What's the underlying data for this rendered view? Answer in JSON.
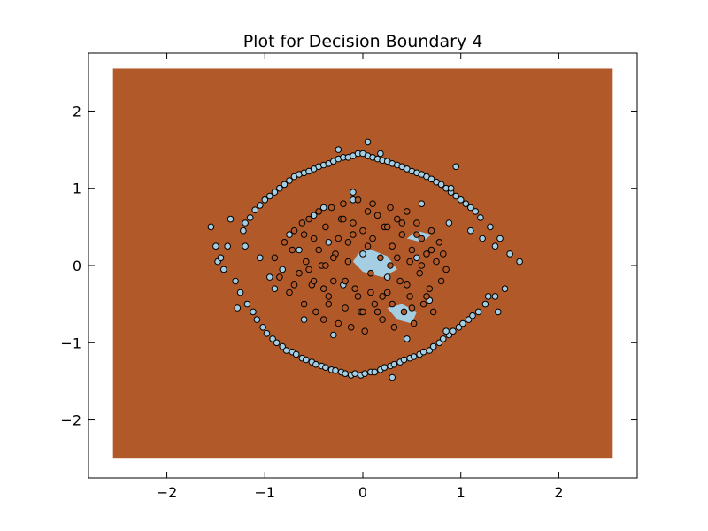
{
  "chart_data": {
    "type": "scatter",
    "title": "Plot for Decision Boundary 4",
    "xlabel": "",
    "ylabel": "",
    "xlim": [
      -2.8,
      2.8
    ],
    "ylim": [
      -2.75,
      2.75
    ],
    "x_ticks": [
      -2,
      -1,
      0,
      1,
      2
    ],
    "y_ticks": [
      -2,
      -1,
      0,
      1,
      2
    ],
    "x_tick_labels": [
      "−2",
      "−1",
      "0",
      "1",
      "2"
    ],
    "y_tick_labels": [
      "−2",
      "−1",
      "0",
      "1",
      "2"
    ],
    "grid": false,
    "legend": "none",
    "decision_region": {
      "x_range": [
        -2.55,
        2.55
      ],
      "y_range": [
        -2.5,
        2.55
      ],
      "class_color": "#b15928"
    },
    "inner_regions": [
      {
        "x": [
          -0.05,
          0.05,
          0.25,
          0.35,
          0.2,
          0.0,
          -0.1
        ],
        "y": [
          0.15,
          0.22,
          0.12,
          -0.05,
          -0.15,
          -0.08,
          0.05
        ],
        "color": "#a6cee3"
      },
      {
        "x": [
          0.25,
          0.4,
          0.55,
          0.5,
          0.35
        ],
        "y": [
          -0.55,
          -0.5,
          -0.6,
          -0.75,
          -0.7
        ],
        "color": "#a6cee3"
      },
      {
        "x": [
          0.45,
          0.55,
          0.7,
          0.6
        ],
        "y": [
          0.35,
          0.45,
          0.4,
          0.3
        ],
        "color": "#a6cee3"
      }
    ],
    "series": [
      {
        "class": 0,
        "color": "#a6cee3",
        "edge_color": "#000000",
        "x": [
          -1.48,
          -1.45,
          -1.42,
          -1.38,
          -1.3,
          -1.22,
          -1.25,
          -1.2,
          -1.18,
          -1.15,
          -1.12,
          -1.1,
          -1.08,
          -1.05,
          -1.02,
          -1.0,
          -0.98,
          -0.95,
          -0.92,
          -0.9,
          -0.88,
          -0.85,
          -0.82,
          -0.8,
          -0.78,
          -0.75,
          -0.72,
          -0.7,
          -0.68,
          -0.65,
          -0.62,
          -0.6,
          -0.58,
          -0.55,
          -0.52,
          -0.5,
          -0.48,
          -0.45,
          -0.42,
          -0.4,
          -0.38,
          -0.35,
          -0.32,
          -0.3,
          -0.28,
          -0.25,
          -0.22,
          -0.2,
          -0.18,
          -0.15,
          -0.12,
          -0.1,
          -0.08,
          -0.05,
          -0.02,
          0.0,
          0.02,
          0.05,
          0.08,
          0.1,
          0.12,
          0.15,
          0.18,
          0.2,
          0.22,
          0.25,
          0.28,
          0.3,
          0.32,
          0.35,
          0.38,
          0.4,
          0.42,
          0.45,
          0.48,
          0.5,
          0.52,
          0.55,
          0.58,
          0.6,
          0.62,
          0.65,
          0.68,
          0.7,
          0.72,
          0.75,
          0.78,
          0.8,
          0.82,
          0.85,
          0.88,
          0.9,
          0.92,
          0.95,
          0.98,
          1.0,
          1.02,
          1.05,
          1.08,
          1.1,
          1.12,
          1.15,
          1.18,
          1.2,
          1.25,
          1.3,
          1.35,
          1.4,
          1.45,
          1.5,
          1.6,
          -1.55,
          -1.5,
          -1.35,
          -1.28,
          -1.2,
          -1.05,
          -0.9,
          -0.75,
          -0.6,
          -0.4,
          -0.3,
          -0.25,
          -0.1,
          0.05,
          0.18,
          0.3,
          0.45,
          0.6,
          0.72,
          0.85,
          0.95,
          1.1,
          1.28,
          1.35,
          -0.35,
          -0.2,
          0.0,
          0.25,
          0.55,
          0.68,
          0.88,
          -0.82,
          -0.65,
          -0.95,
          1.22,
          1.38,
          0.9,
          -0.5,
          -0.1
        ],
        "y": [
          0.05,
          0.1,
          -0.05,
          0.25,
          -0.2,
          0.45,
          -0.35,
          0.55,
          -0.5,
          0.62,
          -0.6,
          0.72,
          -0.7,
          0.78,
          -0.8,
          0.85,
          -0.88,
          0.9,
          -0.95,
          0.95,
          -1.0,
          1.0,
          -1.05,
          1.05,
          -1.1,
          1.1,
          -1.12,
          1.15,
          -1.15,
          1.18,
          -1.2,
          1.2,
          -1.22,
          1.22,
          -1.25,
          1.25,
          -1.28,
          1.28,
          -1.3,
          1.3,
          -1.32,
          1.32,
          -1.35,
          1.35,
          -1.36,
          1.38,
          -1.38,
          1.4,
          -1.4,
          1.4,
          -1.42,
          1.42,
          -1.4,
          1.45,
          -1.42,
          1.45,
          -1.4,
          1.42,
          -1.38,
          1.4,
          -1.38,
          1.38,
          -1.35,
          1.36,
          -1.32,
          1.35,
          -1.3,
          1.32,
          -1.28,
          1.3,
          -1.25,
          1.28,
          -1.22,
          1.25,
          -1.2,
          1.22,
          -1.18,
          1.2,
          -1.15,
          1.18,
          -1.12,
          1.15,
          -1.1,
          1.12,
          -1.05,
          1.08,
          -1.0,
          1.05,
          -0.95,
          1.0,
          -0.9,
          0.95,
          -0.85,
          0.9,
          -0.8,
          0.85,
          -0.75,
          0.8,
          -0.7,
          0.75,
          -0.65,
          0.7,
          -0.6,
          0.62,
          -0.5,
          0.5,
          -0.4,
          0.35,
          -0.3,
          0.15,
          0.05,
          0.5,
          0.25,
          0.6,
          -0.55,
          0.25,
          0.1,
          -0.3,
          0.4,
          -0.7,
          0.75,
          -0.9,
          1.5,
          0.95,
          1.6,
          1.45,
          -1.45,
          -0.95,
          0.8,
          -1.05,
          -0.85,
          1.28,
          0.45,
          -0.4,
          0.25,
          0.3,
          -0.25,
          0.15,
          -0.15,
          0.1,
          -0.45,
          0.55,
          -0.05,
          0.2,
          -0.15,
          0.35,
          -0.6,
          1.0,
          0.65,
          0.85
        ]
      },
      {
        "class": 1,
        "color": "#b15928",
        "edge_color": "#000000",
        "x": [
          -0.9,
          -0.85,
          -0.8,
          -0.75,
          -0.72,
          -0.7,
          -0.65,
          -0.62,
          -0.6,
          -0.58,
          -0.55,
          -0.52,
          -0.5,
          -0.48,
          -0.45,
          -0.42,
          -0.4,
          -0.38,
          -0.35,
          -0.32,
          -0.3,
          -0.28,
          -0.25,
          -0.22,
          -0.2,
          -0.18,
          -0.15,
          -0.12,
          -0.1,
          -0.08,
          -0.05,
          -0.02,
          0.0,
          0.02,
          0.05,
          0.08,
          0.1,
          0.12,
          0.15,
          0.18,
          0.2,
          0.22,
          0.25,
          0.28,
          0.3,
          0.32,
          0.35,
          0.38,
          0.4,
          0.42,
          0.45,
          0.48,
          0.5,
          0.52,
          0.55,
          0.58,
          0.6,
          0.62,
          0.65,
          0.68,
          0.7,
          0.72,
          0.75,
          0.78,
          0.8,
          0.82,
          0.85,
          -0.55,
          -0.45,
          -0.35,
          -0.25,
          -0.15,
          -0.05,
          0.05,
          0.15,
          0.25,
          0.35,
          0.45,
          0.55,
          0.65,
          -0.6,
          -0.4,
          -0.2,
          0.0,
          0.2,
          0.4,
          0.6,
          -0.5,
          -0.3,
          -0.1,
          0.1,
          0.3,
          0.5,
          0.7,
          -0.7,
          -0.38,
          -0.18,
          0.08,
          0.28,
          0.48
        ],
        "y": [
          0.1,
          -0.15,
          0.3,
          -0.35,
          0.2,
          0.45,
          -0.1,
          0.55,
          -0.5,
          0.05,
          0.6,
          -0.25,
          0.35,
          -0.6,
          0.7,
          0.0,
          -0.7,
          0.5,
          -0.4,
          0.75,
          -0.2,
          0.15,
          -0.75,
          0.6,
          0.8,
          -0.55,
          0.3,
          -0.8,
          0.55,
          -0.3,
          0.85,
          -0.6,
          0.45,
          -0.85,
          0.7,
          -0.1,
          0.8,
          -0.5,
          0.65,
          0.1,
          -0.7,
          0.5,
          -0.35,
          0.75,
          0.25,
          -0.8,
          0.6,
          -0.2,
          0.4,
          -0.6,
          0.7,
          -0.4,
          0.2,
          -0.75,
          0.55,
          -0.1,
          0.35,
          -0.5,
          0.15,
          -0.3,
          0.45,
          -0.6,
          0.05,
          0.3,
          -0.2,
          0.15,
          -0.05,
          -0.05,
          0.2,
          -0.5,
          0.35,
          0.05,
          -0.4,
          0.25,
          -0.6,
          0.5,
          0.1,
          -0.25,
          0.4,
          -0.4,
          0.4,
          -0.3,
          0.6,
          -0.6,
          -0.4,
          0.55,
          0.0,
          -0.2,
          0.1,
          0.4,
          0.35,
          -0.5,
          -0.55,
          0.2,
          -0.25,
          0.0,
          -0.2,
          -0.35,
          0.0,
          0.05
        ]
      }
    ]
  }
}
